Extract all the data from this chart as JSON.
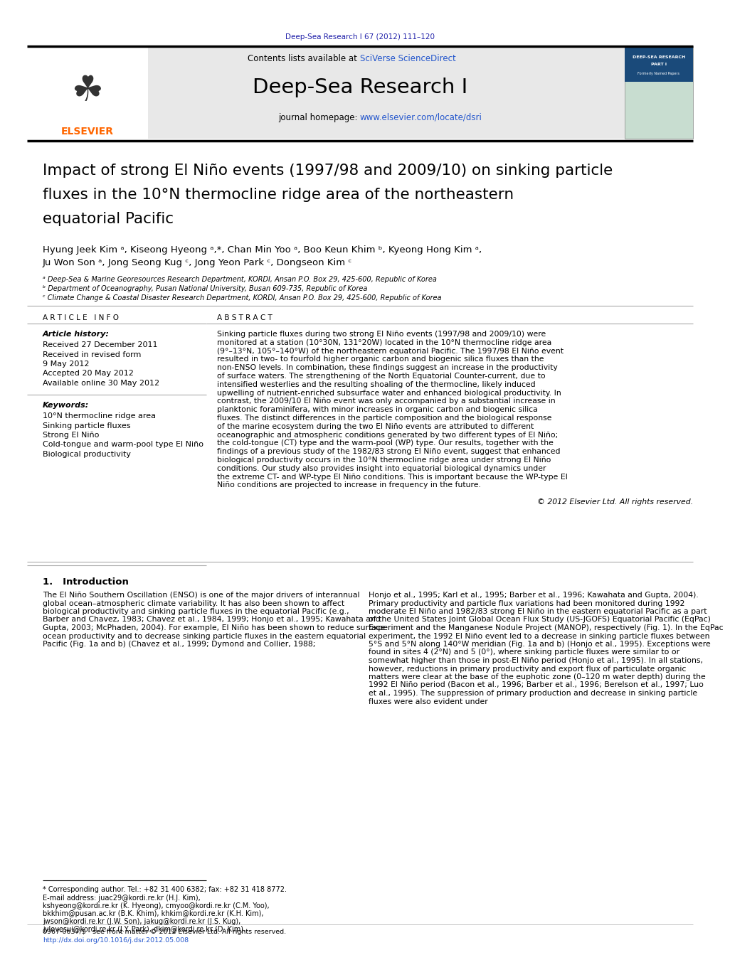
{
  "page_bg": "#ffffff",
  "top_journal_ref": "Deep-Sea Research I 67 (2012) 111–120",
  "top_journal_ref_color": "#2222aa",
  "header_bg": "#e8e8e8",
  "header_sciverse_color": "#2255cc",
  "journal_title": "Deep-Sea Research I",
  "journal_homepage_url": "www.elsevier.com/locate/dsri",
  "journal_homepage_url_color": "#2255cc",
  "article_title_line1": "Impact of strong El Niño events (1997/98 and 2009/10) on sinking particle",
  "article_title_line2": "fluxes in the 10°N thermocline ridge area of the northeastern",
  "article_title_line3": "equatorial Pacific",
  "authors_line1": "Hyung Jeek Kim ᵃ, Kiseong Hyeong ᵃ,*, Chan Min Yoo ᵃ, Boo Keun Khim ᵇ, Kyeong Hong Kim ᵃ,",
  "authors_line2": "Ju Won Son ᵃ, Jong Seong Kug ᶜ, Jong Yeon Park ᶜ, Dongseon Kim ᶜ",
  "affil_a": "ᵃ Deep-Sea & Marine Georesources Research Department, KORDI, Ansan P.O. Box 29, 425-600, Republic of Korea",
  "affil_b": "ᵇ Department of Oceanography, Pusan National University, Busan 609-735, Republic of Korea",
  "affil_c": "ᶜ Climate Change & Coastal Disaster Research Department, KORDI, Ansan P.O. Box 29, 425-600, Republic of Korea",
  "article_history_label": "Article history:",
  "article_history_lines": [
    "Received 27 December 2011",
    "Received in revised form",
    "9 May 2012",
    "Accepted 20 May 2012",
    "Available online 30 May 2012"
  ],
  "keywords_label": "Keywords:",
  "keywords_lines": [
    "10°N thermocline ridge area",
    "Sinking particle fluxes",
    "Strong El Niño",
    "Cold-tongue and warm-pool type El Niño",
    "Biological productivity"
  ],
  "abstract_text": "Sinking particle fluxes during two strong El Niño events (1997/98 and 2009/10) were monitored at a station (10°30N, 131°20W) located in the 10°N thermocline ridge area (9°–13°N, 105°–140°W) of the northeastern equatorial Pacific. The 1997/98 El Niño event resulted in two- to fourfold higher organic carbon and biogenic silica fluxes than the non-ENSO levels. In combination, these findings suggest an increase in the productivity of surface waters. The strengthening of the North Equatorial Counter-current, due to intensified westerlies and the resulting shoaling of the thermocline, likely induced upwelling of nutrient-enriched subsurface water and enhanced biological productivity. In contrast, the 2009/10 El Niño event was only accompanied by a substantial increase in planktonic foraminifera, with minor increases in organic carbon and biogenic silica fluxes. The distinct differences in the particle composition and the biological response of the marine ecosystem during the two El Niño events are attributed to different oceanographic and atmospheric conditions generated by two different types of El Niño; the cold-tongue (CT) type and the warm-pool (WP) type. Our results, together with the findings of a previous study of the 1982/83 strong El Niño event, suggest that enhanced biological productivity occurs in the 10°N thermocline ridge area under strong El Niño conditions. Our study also provides insight into equatorial biological dynamics under the extreme CT- and WP-type El Niño conditions. This is important because the WP-type El Niño conditions are projected to increase in frequency in the future.",
  "copyright_text": "© 2012 Elsevier Ltd. All rights reserved.",
  "intro_heading": "1.   Introduction",
  "intro_col1_text": "   The El Niño Southern Oscillation (ENSO) is one of the major drivers of interannual global ocean–atmospheric climate variability. It has also been shown to affect biological productivity and sinking particle fluxes in the equatorial Pacific (e.g., Barber and Chavez, 1983; Chavez et al., 1984, 1999; Honjo et al., 1995; Kawahata and Gupta, 2003; McPhaden, 2004). For example, El Niño has been shown to reduce surface ocean productivity and to decrease sinking particle fluxes in the eastern equatorial Pacific (Fig. 1a and b) (Chavez et al., 1999; Dymond and Collier, 1988;",
  "intro_col2_text": "Honjo et al., 1995; Karl et al., 1995; Barber et al., 1996; Kawahata and Gupta, 2004). Primary productivity and particle flux variations had been monitored during 1992 moderate El Niño and 1982/83 strong El Niño in the eastern equatorial Pacific as a part of the United States Joint Global Ocean Flux Study (US-JGOFS) Equatorial Pacific (EqPac) Experiment and the Manganese Nodule Project (MANOP), respectively (Fig. 1). In the EqPac experiment, the 1992 El Niño event led to a decrease in sinking particle fluxes between 5°S and 5°N along 140°W meridian (Fig. 1a and b) (Honjo et al., 1995). Exceptions were found in sites 4 (2°N) and 5 (0°), where sinking particle fluxes were similar to or somewhat higher than those in post-El Niño period (Honjo et al., 1995). In all stations, however, reductions in primary productivity and export flux of particulate organic matters were clear at the base of the euphotic zone (0–120 m water depth) during the 1992 El Niño period (Bacon et al., 1996; Barber et al., 1996; Berelson et al., 1997; Luo et al., 1995). The suppression of primary production and decrease in sinking particle fluxes were also evident under",
  "footnote_star": "* Corresponding author. Tel.: +82 31 400 6382; fax: +82 31 418 8772.",
  "footnote_email_lines": [
    "E-mail address: juac29@kordi.re.kr (H.J. Kim),",
    "kshyeong@kordi.re.kr (K. Hyeong), cmyoo@kordi.re.kr (C.M. Yoo),",
    "bkkhim@pusan.ac.kr (B.K. Khim), khkim@kordi.re.kr (K.H. Kim),",
    "jwson@kordi.re.kr (J.W. Son), jakug@kordi.re.kr (J.S. Kug),",
    "jylovesui@kordi.re.kr (J.Y. Park), dkim@kordi.re.kr (D. Kim)."
  ],
  "issn_line": "0967-0637/$ - see front matter © 2012 Elsevier Ltd. All rights reserved.",
  "doi_line": "http://dx.doi.org/10.1016/j.dsr.2012.05.008",
  "link_color": "#2255cc",
  "elsevier_color": "#FF6600",
  "cover_bg": "#c8ddd0",
  "cover_header_bg": "#1a4a7a",
  "gray_line": "#aaaaaa"
}
